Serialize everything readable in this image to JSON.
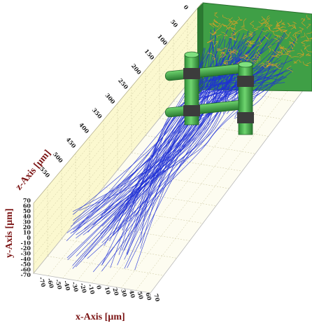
{
  "axes": {
    "x": {
      "title": "x-Axis [µm]",
      "ticks": [
        "-70",
        "-60",
        "-50",
        "-40",
        "-30",
        "-20",
        "-10",
        "0",
        "10",
        "20",
        "30",
        "40",
        "50",
        "60",
        "70"
      ]
    },
    "y": {
      "title": "y-Axis [µm]",
      "ticks": [
        "70",
        "60",
        "50",
        "40",
        "30",
        "20",
        "10",
        "0",
        "-10",
        "-20",
        "-30",
        "-40",
        "-50",
        "-60",
        "-70"
      ]
    },
    "z": {
      "title": "z-Axis [µm]",
      "ticks": [
        "0",
        "50",
        "100",
        "150",
        "200",
        "250",
        "300",
        "350",
        "400",
        "450",
        "500",
        "550"
      ]
    }
  },
  "colors": {
    "back_wall": "#fbf8cf",
    "floor": "#fdfcf0",
    "target_plate": "#3f9f46",
    "trajectories": "#1f2fd6",
    "impact_traces": "#f0a020",
    "pillar": "#56c75a",
    "junction": "#3c3c3c",
    "axis_title": "#7a1212"
  }
}
